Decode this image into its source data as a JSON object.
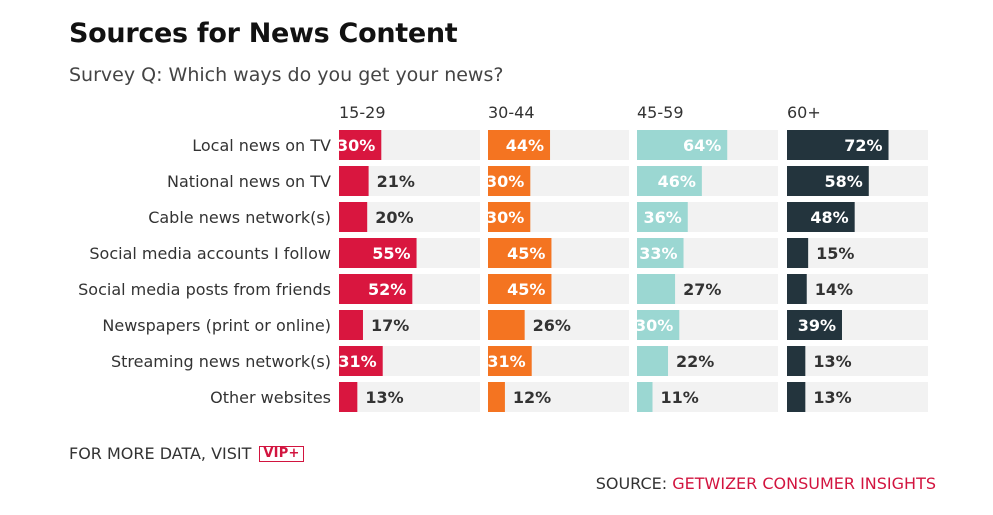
{
  "header": {
    "title": "Sources for News Content",
    "subtitle": "Survey Q: Which ways do you get your news?"
  },
  "footer": {
    "more_label": "FOR MORE DATA, VISIT",
    "vip_badge": "VIP+",
    "source_label": "SOURCE:",
    "source_name": "GETWIZER CONSUMER INSIGHTS"
  },
  "colors": {
    "track": "#f2f2f2",
    "label_dark_text": "#333333",
    "label_light_text": "#ffffff",
    "accent": "#d2143f"
  },
  "chart_data": {
    "type": "bar",
    "orientation": "horizontal",
    "layout": "small-multiples",
    "title": "Sources for News Content",
    "subtitle": "Survey Q: Which ways do you get your news?",
    "categories": [
      "Local news on TV",
      "National news on TV",
      "Cable news network(s)",
      "Social media accounts I follow",
      "Social media posts from friends",
      "Newspapers (print or online)",
      "Streaming news network(s)",
      "Other websites"
    ],
    "value_format": "{v}%",
    "xlim": [
      0,
      100
    ],
    "grid": false,
    "series": [
      {
        "name": "15-29",
        "color": "#d9163f",
        "values": [
          30,
          21,
          20,
          55,
          52,
          17,
          31,
          13
        ]
      },
      {
        "name": "30-44",
        "color": "#f47421",
        "values": [
          44,
          30,
          30,
          45,
          45,
          26,
          31,
          12
        ]
      },
      {
        "name": "45-59",
        "color": "#9bd7d2",
        "values": [
          64,
          46,
          36,
          33,
          27,
          30,
          22,
          11
        ]
      },
      {
        "name": "60+",
        "color": "#23343d",
        "values": [
          72,
          58,
          48,
          15,
          14,
          39,
          13,
          13
        ]
      }
    ]
  }
}
